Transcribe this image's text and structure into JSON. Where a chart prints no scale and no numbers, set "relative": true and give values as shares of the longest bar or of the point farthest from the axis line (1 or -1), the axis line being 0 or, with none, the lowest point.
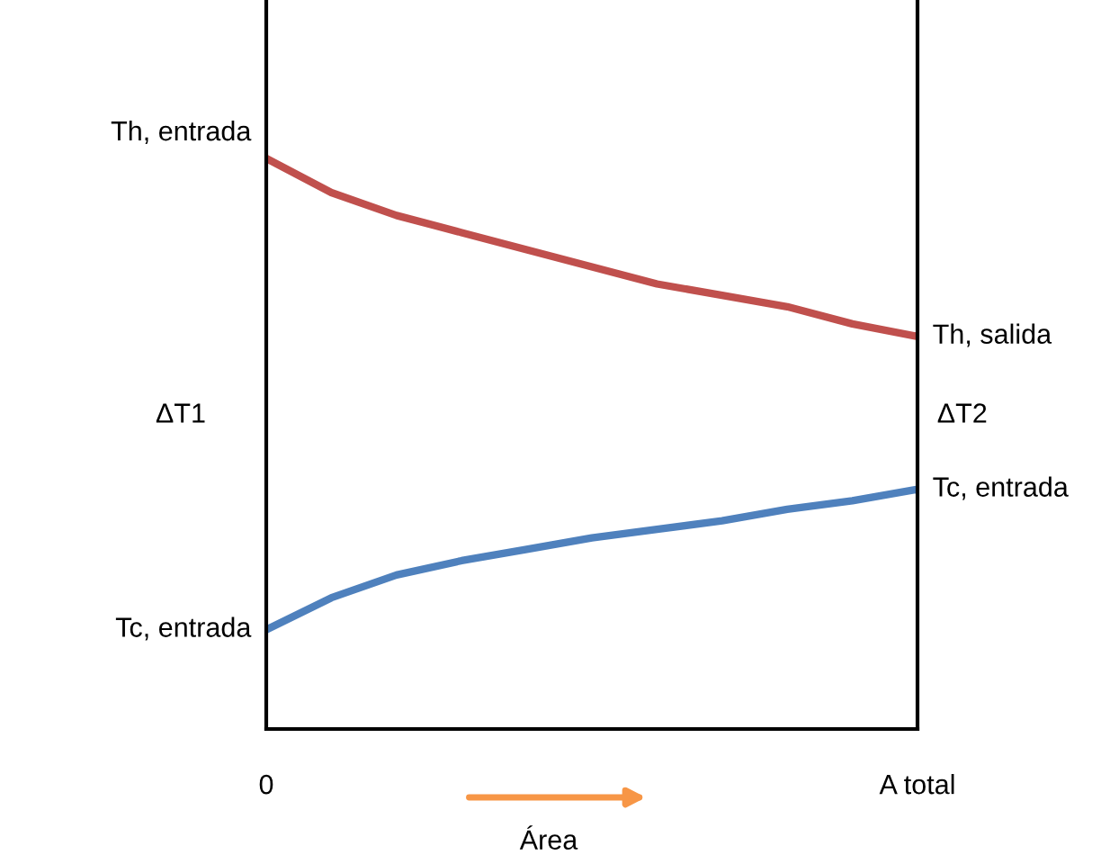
{
  "chart_data": {
    "type": "line",
    "relative": true,
    "xlabel": "Área",
    "legend": false,
    "line_style": "solid",
    "categories": [
      "0",
      null,
      null,
      null,
      null,
      null,
      null,
      null,
      null,
      null,
      "A total"
    ],
    "series": [
      {
        "color": "#c0504d",
        "values": [
          1.0,
          0.94,
          0.9,
          0.87,
          0.84,
          0.81,
          0.78,
          0.76,
          0.74,
          0.71,
          0.688
        ]
      },
      {
        "color": "#4f81bd",
        "values": [
          0.174,
          0.23,
          0.27,
          0.295,
          0.315,
          0.335,
          0.35,
          0.365,
          0.385,
          0.4,
          0.42
        ]
      }
    ],
    "annotations": [
      {
        "text": "Th, entrada",
        "x": "0",
        "y": 1.0
      },
      "ΔT1",
      {
        "text": "Tc, entrada",
        "x": "0",
        "y": 0.174
      },
      {
        "text": "Th, salida",
        "x": "A total",
        "y": 0.688
      },
      "ΔT2",
      {
        "text": "Tc, entrada",
        "x": "A total",
        "y": 0.42
      }
    ]
  }
}
